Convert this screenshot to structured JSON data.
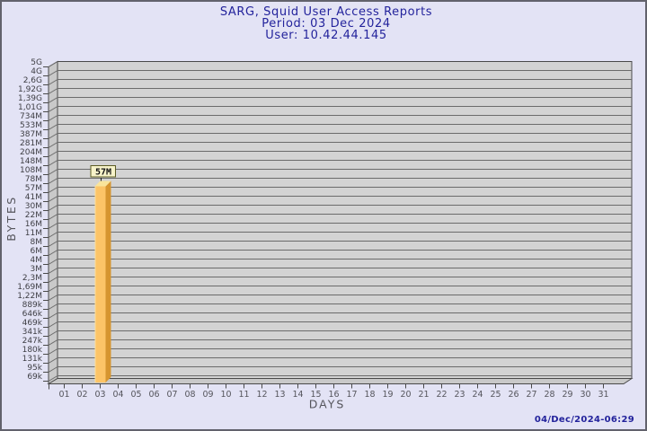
{
  "header": {
    "title": "SARG, Squid User Access Reports",
    "period": "Period: 03 Dec 2024",
    "user": "User: 10.42.44.145"
  },
  "footer": {
    "timestamp": "04/Dec/2024-06:29"
  },
  "chart_data": {
    "type": "bar",
    "title": "SARG, Squid User Access Reports",
    "subtitle": [
      "Period: 03 Dec 2024",
      "User: 10.42.44.145"
    ],
    "xlabel": "DAYS",
    "ylabel": "BYTES",
    "grid": true,
    "style": "3d-bar",
    "categories": [
      "01",
      "02",
      "03",
      "04",
      "05",
      "06",
      "07",
      "08",
      "09",
      "10",
      "11",
      "12",
      "13",
      "14",
      "15",
      "16",
      "17",
      "18",
      "19",
      "20",
      "21",
      "22",
      "23",
      "24",
      "25",
      "26",
      "27",
      "28",
      "29",
      "30",
      "31"
    ],
    "values_mb": [
      0,
      0,
      57,
      0,
      0,
      0,
      0,
      0,
      0,
      0,
      0,
      0,
      0,
      0,
      0,
      0,
      0,
      0,
      0,
      0,
      0,
      0,
      0,
      0,
      0,
      0,
      0,
      0,
      0,
      0,
      0
    ],
    "bars": [
      {
        "category": "03",
        "label": "57M",
        "value_mb": 57
      }
    ],
    "y_axis": {
      "scale": "log",
      "tick_labels_top_to_bottom": [
        "5G",
        "4G",
        "2,6G",
        "1,92G",
        "1,39G",
        "1,01G",
        "734M",
        "533M",
        "387M",
        "281M",
        "204M",
        "148M",
        "108M",
        "78M",
        "57M",
        "41M",
        "30M",
        "22M",
        "16M",
        "11M",
        "8M",
        "6M",
        "4M",
        "3M",
        "2,3M",
        "1,69M",
        "1,22M",
        "889k",
        "646k",
        "469k",
        "341k",
        "247k",
        "180k",
        "131k",
        "95k",
        "69k"
      ]
    }
  },
  "colors": {
    "background": "#e3e3f5",
    "frame_border": "#62626c",
    "title_text": "#23239c",
    "axis_text": "#55555c",
    "tick_text": "#3e3e44",
    "wall": "#d3d3d3",
    "wall_side": "#c9c9c9",
    "wall_edge": "#4a4a4a",
    "gridline": "#6b6b6b",
    "bar_front": "#fcc467",
    "bar_side": "#d6952f",
    "bar_top": "#f9e49a",
    "bar_highlight": "#fddf9b",
    "flag_fill": "#f7f3c9",
    "flag_border": "#5c5c24",
    "flag_text": "#141414"
  }
}
